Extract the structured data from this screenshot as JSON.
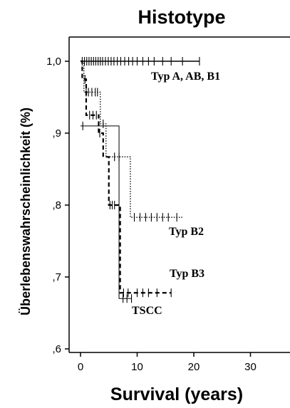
{
  "chart_data": {
    "type": "line",
    "title": "Histotype",
    "xlabel": "Survival (years)",
    "ylabel": "Überlebenswahrscheinlichkeit (%)",
    "xlim": [
      -2,
      37
    ],
    "ylim": [
      0.6,
      1.04
    ],
    "x_ticks": [
      0,
      10,
      20,
      30
    ],
    "x_tick_labels": [
      "0",
      "10",
      "20",
      "30"
    ],
    "y_ticks": [
      0.6,
      0.7,
      0.8,
      0.9,
      1.0
    ],
    "y_tick_labels": [
      ",6",
      ",7",
      ",8",
      ",9",
      "1,0"
    ],
    "grid": false,
    "series": [
      {
        "name": "Typ A, AB, B1",
        "style": "solid",
        "steps": [
          [
            0,
            1.0
          ],
          [
            21,
            1.0
          ]
        ],
        "censored": [
          0.3,
          0.7,
          1.1,
          1.5,
          1.9,
          2.3,
          2.7,
          3.1,
          3.5,
          3.9,
          4.4,
          4.9,
          5.4,
          5.9,
          6.5,
          7.1,
          7.8,
          8.5,
          9.2,
          10.0,
          11.0,
          12.0,
          13.0,
          14.5,
          16.0,
          18.0,
          21.0
        ]
      },
      {
        "name": "Typ B2",
        "style": "dotted",
        "steps": [
          [
            0,
            1.0
          ],
          [
            0.6,
            0.957
          ],
          [
            3.5,
            0.913
          ],
          [
            4.5,
            0.867
          ],
          [
            8.8,
            0.783
          ],
          [
            18,
            0.783
          ]
        ],
        "censored": [
          1.0,
          1.4,
          2.0,
          2.6,
          3.0,
          4.0,
          6.0,
          6.8,
          9.5,
          10.5,
          11.5,
          12.5,
          13.5,
          14.5,
          15.5,
          17.0
        ]
      },
      {
        "name": "Typ B3",
        "style": "dashed",
        "steps": [
          [
            0,
            1.0
          ],
          [
            0.3,
            0.975
          ],
          [
            1.0,
            0.925
          ],
          [
            3.2,
            0.9
          ],
          [
            4.0,
            0.867
          ],
          [
            5.0,
            0.8
          ],
          [
            7.0,
            0.678
          ],
          [
            16,
            0.678
          ]
        ],
        "censored": [
          0.8,
          1.6,
          2.2,
          2.8,
          3.4,
          5.2,
          5.6,
          6.0,
          7.6,
          8.4,
          10.0,
          11.0,
          12.0,
          13.5,
          16.0
        ]
      },
      {
        "name": "TSCC",
        "style": "solid-thin",
        "steps": [
          [
            0,
            0.91
          ],
          [
            6.8,
            0.91
          ],
          [
            6.8,
            0.67
          ],
          [
            9.0,
            0.67
          ]
        ],
        "censored": [
          0.4,
          7.5,
          8.2,
          9.0
        ]
      }
    ],
    "annotations": [
      "Typ A, AB, B1",
      "Typ B2",
      "Typ B3",
      "TSCC"
    ]
  }
}
